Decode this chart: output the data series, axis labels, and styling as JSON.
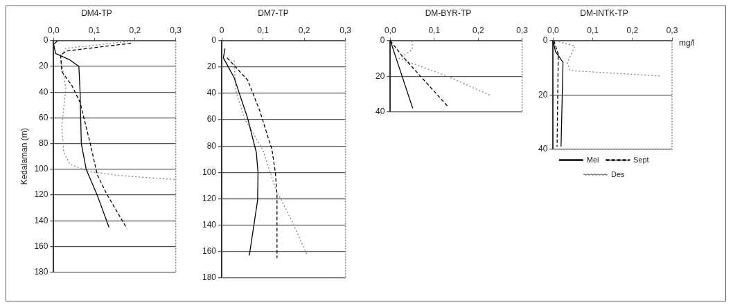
{
  "chart_data": [
    {
      "type": "line",
      "title": "DM4-TP",
      "ylabel": "Kedalaman (m)",
      "xlim": [
        0,
        0.3
      ],
      "xticks": [
        {
          "value": 0,
          "label": "0,0"
        },
        {
          "value": 0.1,
          "label": "0,1"
        },
        {
          "value": 0.2,
          "label": "0,2"
        },
        {
          "value": 0.3,
          "label": "0,3"
        }
      ],
      "ylim": [
        180,
        0
      ],
      "yticks": [
        0,
        20,
        40,
        60,
        80,
        100,
        120,
        140,
        160,
        180
      ],
      "grid": "y",
      "legend": false,
      "series": [
        {
          "color": "#000000",
          "line_style": "solid",
          "x": [
            0.01,
            0.0,
            0.005,
            0.04,
            0.062,
            0.065,
            0.068,
            0.08,
            0.107,
            0.136
          ],
          "values": [
            0,
            3,
            10,
            15,
            20,
            40,
            80,
            100,
            120,
            145
          ]
        },
        {
          "color": "#000000",
          "line_style": "dashed",
          "x": [
            0.19,
            0.033,
            0.017,
            0.02,
            0.045,
            0.065,
            0.09,
            0.107,
            0.13,
            0.18
          ],
          "values": [
            2,
            8,
            11,
            24,
            35,
            48,
            80,
            104,
            119,
            146
          ]
        },
        {
          "color": "#808080",
          "line_style": "dotted",
          "x": [
            0.2,
            0.03,
            0.017,
            0.03,
            0.02,
            0.025,
            0.04,
            0.09,
            0.17,
            0.3
          ],
          "values": [
            0,
            6,
            13,
            37,
            67,
            87,
            96,
            102,
            105,
            108
          ]
        }
      ]
    },
    {
      "type": "line",
      "title": "DM7-TP",
      "xlim": [
        0,
        0.3
      ],
      "xticks": [
        0,
        {
          "value": 0.1,
          "label": "0,1"
        },
        {
          "value": 0.2,
          "label": "0,2"
        },
        {
          "value": 0.3,
          "label": "0,3"
        }
      ],
      "ylim": [
        180,
        0
      ],
      "yticks": [
        0,
        20,
        40,
        60,
        80,
        100,
        120,
        140,
        160,
        180
      ],
      "grid": "y",
      "legend": false,
      "series": [
        {
          "color": "#000000",
          "line_style": "solid",
          "x": [
            0.008,
            0.004,
            0.03,
            0.063,
            0.084,
            0.088,
            0.087,
            0.067
          ],
          "values": [
            6,
            13,
            28,
            59,
            85,
            100,
            121,
            163
          ]
        },
        {
          "color": "#000000",
          "line_style": "dashed",
          "x": [
            0.013,
            0.063,
            0.092,
            0.122,
            0.13,
            0.134,
            0.134
          ],
          "values": [
            13,
            30,
            53,
            83,
            100,
            117,
            165
          ]
        },
        {
          "color": "#808080",
          "line_style": "dotted",
          "x": [
            0.03,
            0.034,
            0.055,
            0.1,
            0.13,
            0.172,
            0.206
          ],
          "values": [
            15,
            38,
            59,
            83,
            112,
            138,
            162
          ]
        }
      ]
    },
    {
      "type": "line",
      "title": "DM-BYR-TP",
      "xlim": [
        0,
        0.3
      ],
      "xticks": [
        {
          "value": 0,
          "label": "0,0"
        },
        {
          "value": 0.1,
          "label": "0,1"
        },
        {
          "value": 0.2,
          "label": "0,2"
        },
        {
          "value": 0.3,
          "label": "0,3"
        }
      ],
      "ylim": [
        40,
        0
      ],
      "yticks": [
        0,
        20,
        40
      ],
      "grid": "y",
      "legend": false,
      "series": [
        {
          "color": "#000000",
          "line_style": "solid",
          "x": [
            0,
            0.051
          ],
          "values": [
            0,
            38
          ]
        },
        {
          "color": "#000000",
          "line_style": "dashed",
          "x": [
            0,
            0.025,
            0.131
          ],
          "values": [
            0,
            8,
            37
          ]
        },
        {
          "color": "#808080",
          "line_style": "dotted",
          "x": [
            0.05,
            0.05,
            0.02,
            0.13,
            0.23
          ],
          "values": [
            0,
            5,
            10,
            20,
            31
          ]
        }
      ]
    },
    {
      "type": "line",
      "title": "DM-INTK-TP",
      "annotations": [
        "mg/l"
      ],
      "xlim": [
        0,
        0.3
      ],
      "xticks": [
        {
          "value": 0,
          "label": "0,0"
        },
        {
          "value": 0.1,
          "label": "0,1"
        },
        {
          "value": 0.2,
          "label": "0,2"
        },
        {
          "value": 0.3,
          "label": "0,3"
        }
      ],
      "ylim": [
        40,
        0
      ],
      "yticks": [
        0,
        20,
        40
      ],
      "grid": "y",
      "legend": "bottom",
      "series": [
        {
          "name": "Mei",
          "color": "#000000",
          "line_style": "solid",
          "x": [
            0,
            0.006,
            0.025,
            0.02
          ],
          "values": [
            0,
            4,
            8,
            39
          ]
        },
        {
          "name": "Sept",
          "color": "#000000",
          "line_style": "dashed",
          "x": [
            0.002,
            0.013,
            0.01
          ],
          "values": [
            0,
            5,
            39
          ]
        },
        {
          "name": "Des",
          "color": "#808080",
          "line_style": "dotted",
          "x": [
            0.006,
            0.055,
            0.036,
            0.043,
            0.27
          ],
          "values": [
            0,
            2,
            8,
            11,
            13
          ]
        }
      ]
    }
  ]
}
